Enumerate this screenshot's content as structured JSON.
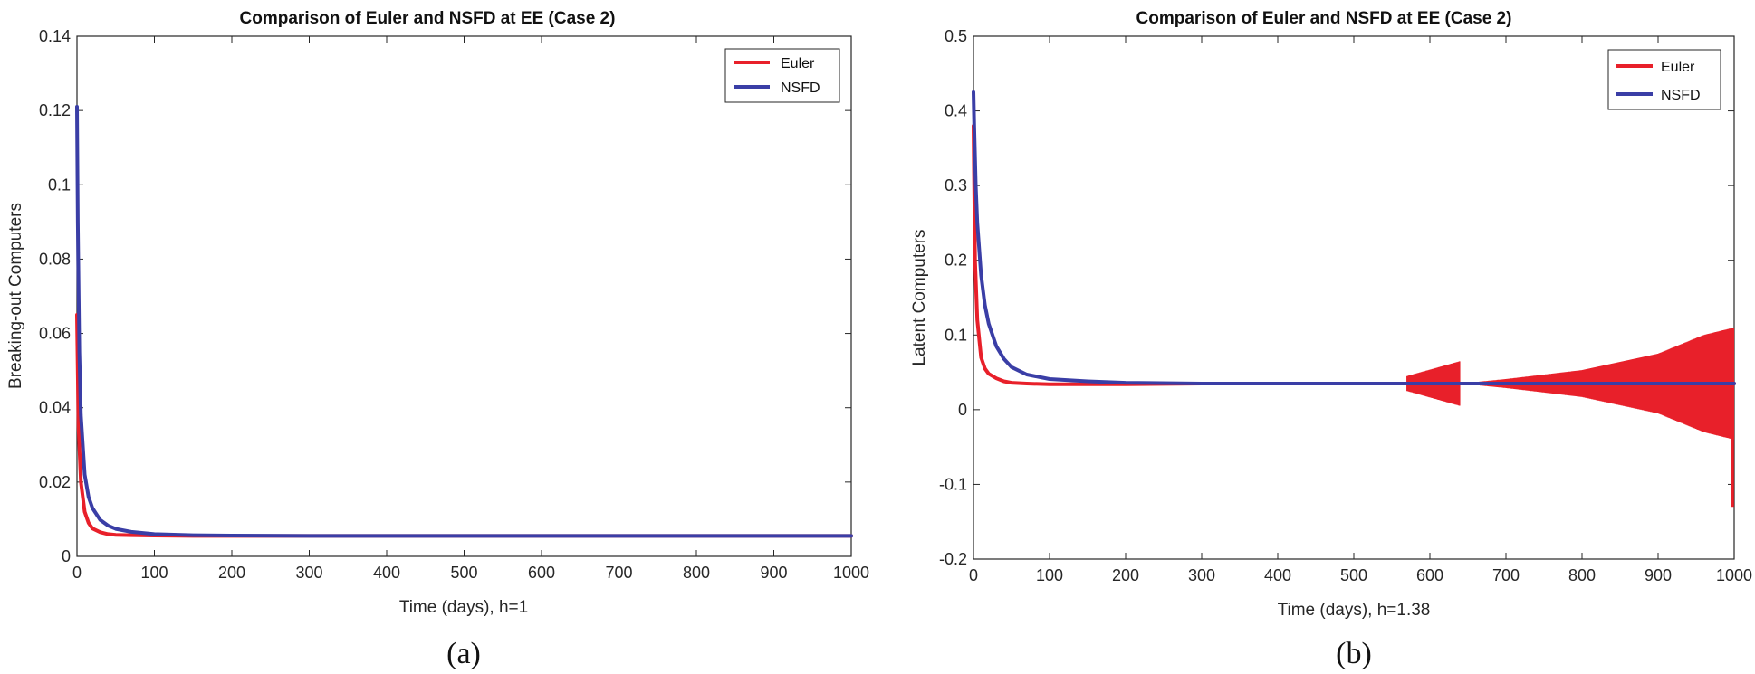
{
  "chart_data": [
    {
      "type": "line",
      "panel_label": "(a)",
      "title": "Comparison of Euler and NSFD at EE (Case 2)",
      "xlabel": "Time (days), h=1",
      "ylabel": "Breaking-out Computers",
      "xlim": [
        0,
        1000
      ],
      "ylim": [
        0,
        0.14
      ],
      "xticks": [
        0,
        100,
        200,
        300,
        400,
        500,
        600,
        700,
        800,
        900,
        1000
      ],
      "yticks": [
        0,
        0.02,
        0.04,
        0.06,
        0.08,
        0.1,
        0.12,
        0.14
      ],
      "xtick_labels": [
        "0",
        "100",
        "200",
        "300",
        "400",
        "500",
        "600",
        "700",
        "800",
        "900",
        "1000"
      ],
      "ytick_labels": [
        "0",
        "0.02",
        "0.04",
        "0.06",
        "0.08",
        "0.1",
        "0.12",
        "0.14"
      ],
      "legend_position": "top-right",
      "series": [
        {
          "name": "Euler",
          "color": "#e8202a",
          "x": [
            0,
            2,
            5,
            10,
            15,
            20,
            30,
            40,
            50,
            70,
            100,
            150,
            200,
            1000
          ],
          "y": [
            0.065,
            0.035,
            0.02,
            0.012,
            0.009,
            0.0075,
            0.0065,
            0.006,
            0.0058,
            0.0057,
            0.0056,
            0.0055,
            0.0055,
            0.0055
          ]
        },
        {
          "name": "NSFD",
          "color": "#3a3ea6",
          "x": [
            0,
            1,
            3,
            5,
            10,
            15,
            20,
            30,
            40,
            50,
            70,
            100,
            150,
            200,
            300,
            1000
          ],
          "y": [
            0.121,
            0.09,
            0.055,
            0.038,
            0.022,
            0.016,
            0.013,
            0.0098,
            0.0083,
            0.0074,
            0.0066,
            0.006,
            0.0057,
            0.0056,
            0.0055,
            0.0055
          ]
        }
      ]
    },
    {
      "type": "line",
      "panel_label": "(b)",
      "title": "Comparison of Euler and NSFD at EE (Case 2)",
      "xlabel": "Time (days), h=1.38",
      "ylabel": "Latent Computers",
      "xlim": [
        0,
        1000
      ],
      "ylim": [
        -0.2,
        0.5
      ],
      "xticks": [
        0,
        100,
        200,
        300,
        400,
        500,
        600,
        700,
        800,
        900,
        1000
      ],
      "yticks": [
        -0.2,
        -0.1,
        0,
        0.1,
        0.2,
        0.3,
        0.4,
        0.5
      ],
      "xtick_labels": [
        "0",
        "100",
        "200",
        "300",
        "400",
        "500",
        "600",
        "700",
        "800",
        "900",
        "1000"
      ],
      "ytick_labels": [
        "-0.2",
        "-0.1",
        "0",
        "0.1",
        "0.2",
        "0.3",
        "0.4",
        "0.5"
      ],
      "legend_position": "top-right",
      "series": [
        {
          "name": "Euler",
          "color": "#e8202a",
          "x": [
            0,
            2,
            5,
            10,
            15,
            20,
            30,
            40,
            50,
            70,
            100,
            200,
            300,
            1000
          ],
          "y": [
            0.38,
            0.2,
            0.12,
            0.07,
            0.055,
            0.048,
            0.042,
            0.038,
            0.036,
            0.035,
            0.034,
            0.034,
            0.035,
            0.035
          ],
          "oscillation_envelope": [
            {
              "x": 570,
              "amp": 0.01
            },
            {
              "x": 640,
              "amp": 0.03
            },
            {
              "x": 650,
              "amp": 0.001
            },
            {
              "x": 700,
              "amp": 0.006
            },
            {
              "x": 800,
              "amp": 0.018
            },
            {
              "x": 900,
              "amp": 0.04
            },
            {
              "x": 960,
              "amp": 0.065
            },
            {
              "x": 1000,
              "amp": 0.075
            }
          ],
          "final_dip": -0.13
        },
        {
          "name": "NSFD",
          "color": "#3a3ea6",
          "x": [
            0,
            1,
            3,
            5,
            10,
            15,
            20,
            30,
            40,
            50,
            70,
            100,
            150,
            200,
            300,
            1000
          ],
          "y": [
            0.425,
            0.38,
            0.3,
            0.25,
            0.18,
            0.14,
            0.115,
            0.085,
            0.068,
            0.057,
            0.047,
            0.041,
            0.038,
            0.036,
            0.035,
            0.035
          ]
        }
      ]
    }
  ]
}
